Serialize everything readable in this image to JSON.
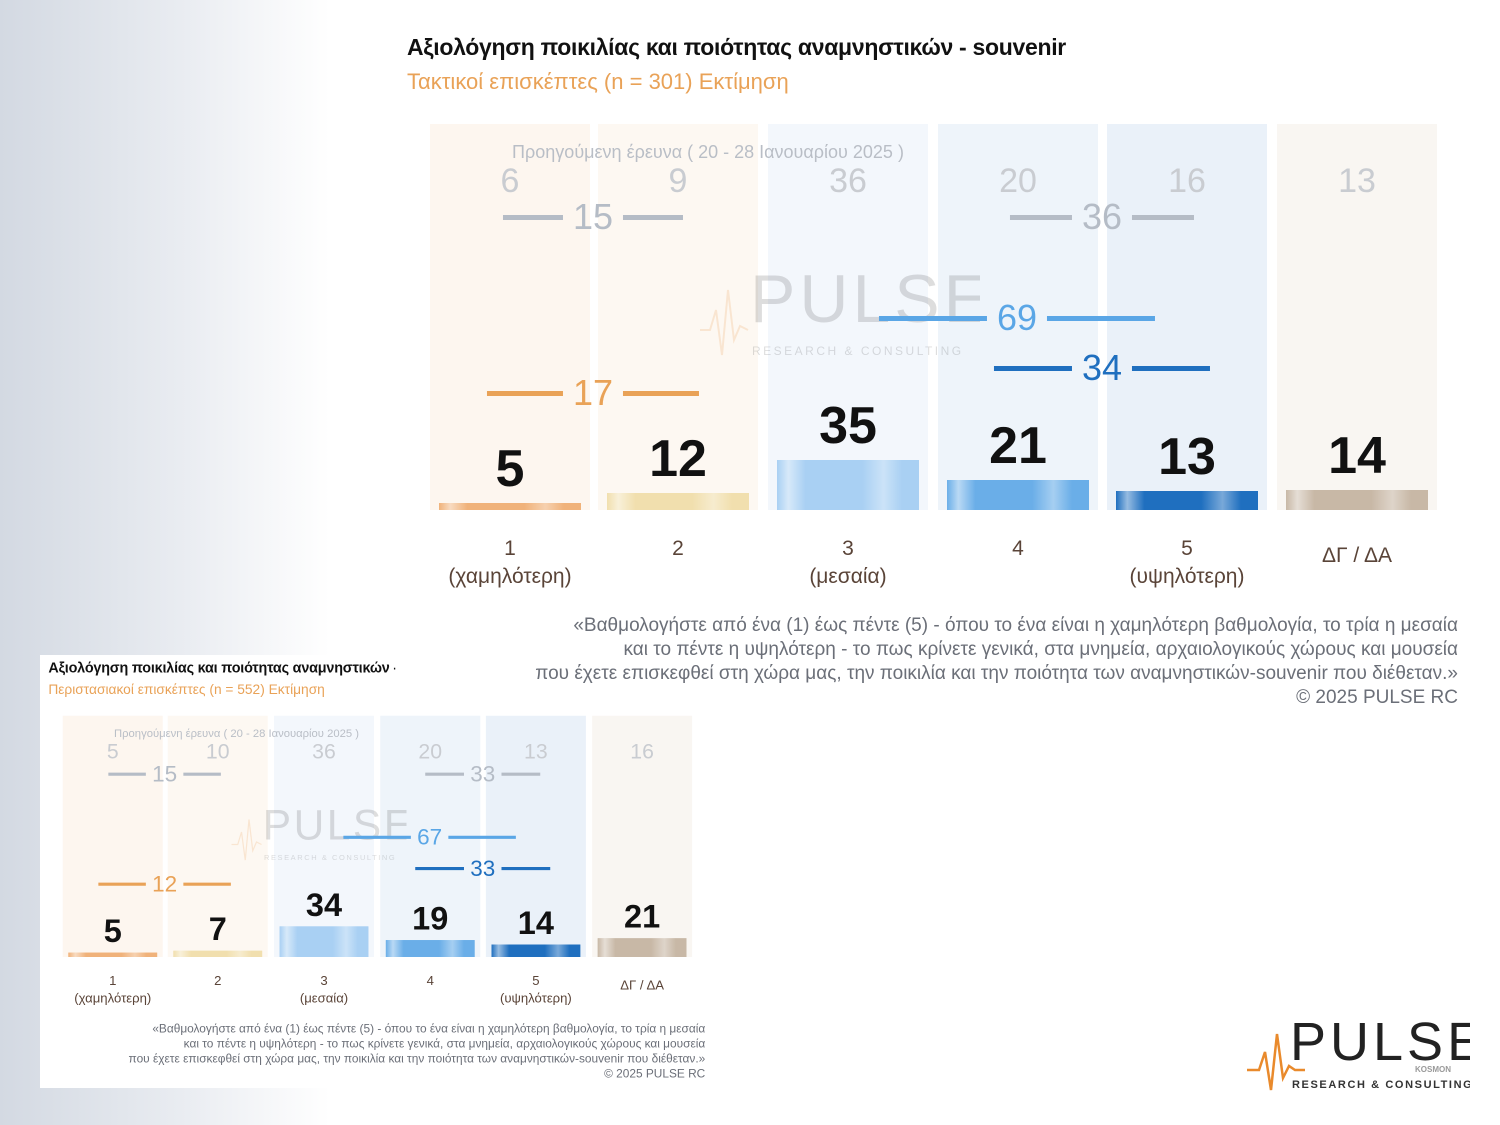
{
  "colors": {
    "orange": "#e9a257",
    "bar_colors": [
      "#f0b27a",
      "#f1dfae",
      "#a9d0f3",
      "#6aaee8",
      "#1f6fbf",
      "#c8b8a6"
    ],
    "col_bg": [
      "#fdf6ef",
      "#fdf8f2",
      "#f3f7fc",
      "#eef4fa",
      "#eaf1f9",
      "#f9f6f2"
    ]
  },
  "charts": [
    {
      "title": "Αξιολόγηση ποικιλίας και ποιότητας αναμνηστικών - souvenir",
      "subtitle": "Τακτικοί επισκέπτες  (n = 301)   Εκτίμηση",
      "prev_label": "Προηγούμενη έρευνα ( 20 - 28 Ιανουαρίου 2025 )",
      "question": [
        "«Βαθμολογήστε από ένα (1) έως πέντε (5) - όπου το ένα είναι η χαμηλότερη βαθμολογία, το τρία η μεσαία",
        "και το πέντε η υψηλότερη - το πως κρίνετε γενικά, στα μνημεία, αρχαιολογικούς χώρους και μουσεία",
        "που έχετε επισκεφθεί στη χώρα μας, την ποικιλία και την ποιότητα των αναμνηστικών-souvenir που διέθεταν.»",
        "©  2025  PULSE RC"
      ],
      "chart_data": {
        "type": "bar",
        "categories": [
          [
            "1",
            "(χαμηλότερη)"
          ],
          [
            "2"
          ],
          [
            "3",
            "(μεσαία)"
          ],
          [
            "4"
          ],
          [
            "5",
            "(υψηλότερη)"
          ],
          [
            "ΔΓ / ΔΑ"
          ]
        ],
        "values": [
          5,
          12,
          35,
          21,
          13,
          14
        ],
        "previous_values": [
          6,
          9,
          36,
          20,
          16,
          13
        ],
        "groups": {
          "low_current": "17",
          "low_previous": "15",
          "high_previous": "36",
          "top2_current": "69",
          "top_current": "34"
        },
        "ylim": [
          0,
          100
        ]
      }
    },
    {
      "title": "Αξιολόγηση ποικιλίας και ποιότητας αναμνηστικών - souvenir",
      "subtitle": "Περιστασιακοί επισκέπτες  (n = 552)   Εκτίμηση",
      "prev_label": "Προηγούμενη έρευνα ( 20 - 28 Ιανουαρίου 2025 )",
      "question": [
        "«Βαθμολογήστε από ένα (1) έως πέντε (5) - όπου το ένα είναι η χαμηλότερη βαθμολογία, το τρία η μεσαία",
        "και το πέντε η υψηλότερη - το πως κρίνετε γενικά, στα μνημεία, αρχαιολογικούς χώρους και μουσεία",
        "που έχετε επισκεφθεί στη χώρα μας, την ποικιλία και την ποιότητα των αναμνηστικών-souvenir που διέθεταν.»",
        "©  2025  PULSE RC"
      ],
      "chart_data": {
        "type": "bar",
        "categories": [
          [
            "1",
            "(χαμηλότερη)"
          ],
          [
            "2"
          ],
          [
            "3",
            "(μεσαία)"
          ],
          [
            "4"
          ],
          [
            "5",
            "(υψηλότερη)"
          ],
          [
            "ΔΓ / ΔΑ"
          ]
        ],
        "values": [
          5,
          7,
          34,
          19,
          14,
          21
        ],
        "previous_values": [
          5,
          10,
          36,
          20,
          13,
          16
        ],
        "groups": {
          "low_current": "12",
          "low_previous": "15",
          "high_previous": "33",
          "top2_current": "67",
          "top_current": "33"
        },
        "ylim": [
          0,
          100
        ]
      }
    }
  ],
  "logo": {
    "name": "PULSE",
    "tag": "RESEARCH & CONSULTING",
    "sub": "KOSMON"
  }
}
